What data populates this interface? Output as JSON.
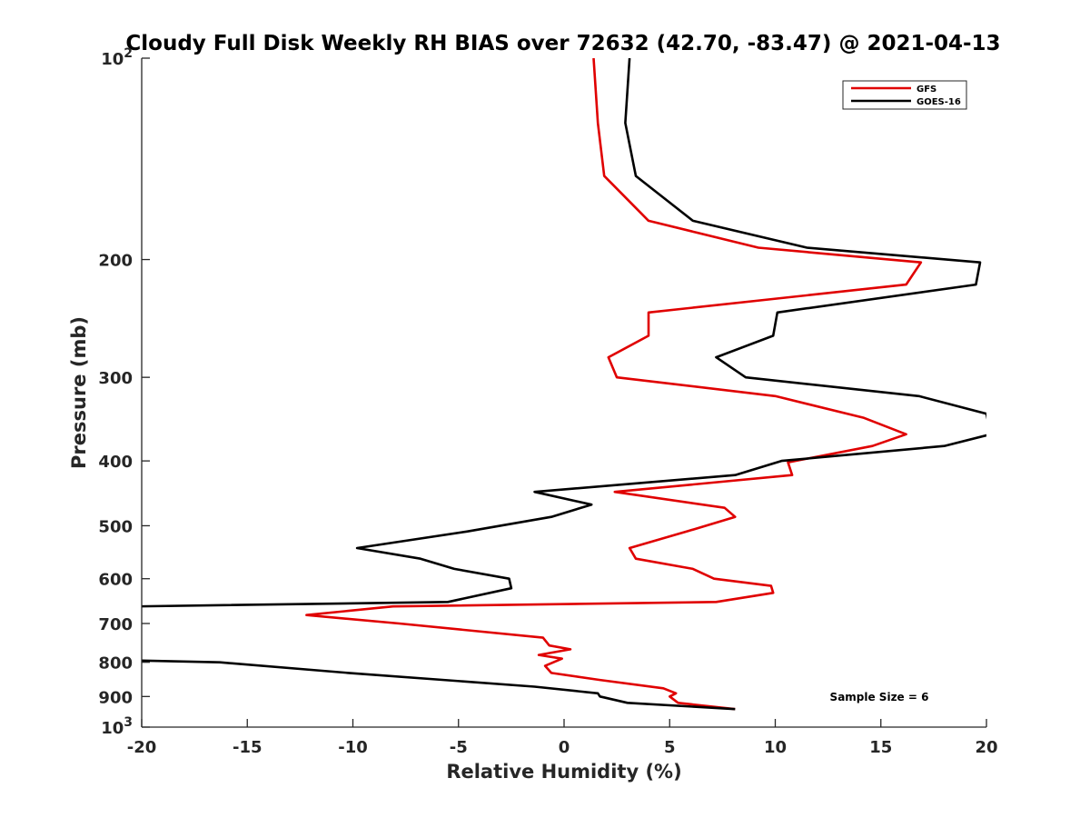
{
  "chart_data": {
    "type": "line",
    "title": "Cloudy Full Disk Weekly RH BIAS over 72632 (42.70, -83.47) @ 2021-04-13",
    "xlabel": "Relative Humidity (%)",
    "ylabel": "Pressure (mb)",
    "xlim": [
      -20,
      20
    ],
    "ylim": [
      100,
      1000
    ],
    "y_scale": "log",
    "y_direction": "reversed",
    "x_ticks": [
      -20,
      -15,
      -10,
      -5,
      0,
      5,
      10,
      15,
      20
    ],
    "x_tick_labels": [
      "-20",
      "-15",
      "-10",
      "-5",
      "0",
      "5",
      "10",
      "15",
      "20"
    ],
    "y_ticks": [
      {
        "value": 100,
        "base": "10",
        "exp": "2"
      },
      {
        "value": 200,
        "label": "200"
      },
      {
        "value": 300,
        "label": "300"
      },
      {
        "value": 400,
        "label": "400"
      },
      {
        "value": 500,
        "label": "500"
      },
      {
        "value": 600,
        "label": "600"
      },
      {
        "value": 700,
        "label": "700"
      },
      {
        "value": 800,
        "label": "800"
      },
      {
        "value": 900,
        "label": "900"
      },
      {
        "value": 1000,
        "base": "10",
        "exp": "3"
      }
    ],
    "grid": false,
    "legend_position": "top-right",
    "annotation": "Sample Size = 6",
    "series": [
      {
        "name": "GFS",
        "color": "#e00000",
        "points": [
          [
            1.4,
            100
          ],
          [
            1.6,
            125
          ],
          [
            1.9,
            150
          ],
          [
            4.0,
            175
          ],
          [
            9.2,
            192
          ],
          [
            16.9,
            202
          ],
          [
            16.2,
            218
          ],
          [
            4.0,
            240
          ],
          [
            4.0,
            260
          ],
          [
            2.1,
            280
          ],
          [
            2.5,
            300
          ],
          [
            10.0,
            320
          ],
          [
            14.2,
            345
          ],
          [
            16.2,
            365
          ],
          [
            14.6,
            380
          ],
          [
            10.6,
            402
          ],
          [
            10.8,
            420
          ],
          [
            2.4,
            445
          ],
          [
            7.6,
            470
          ],
          [
            8.1,
            485
          ],
          [
            5.8,
            510
          ],
          [
            3.1,
            540
          ],
          [
            3.4,
            560
          ],
          [
            6.1,
            580
          ],
          [
            7.1,
            600
          ],
          [
            9.8,
            615
          ],
          [
            9.9,
            630
          ],
          [
            7.2,
            650
          ],
          [
            -8.1,
            660
          ],
          [
            -12.2,
            680
          ],
          [
            -7.8,
            700
          ],
          [
            -1.0,
            735
          ],
          [
            -0.7,
            755
          ],
          [
            0.3,
            765
          ],
          [
            -1.2,
            780
          ],
          [
            -0.1,
            790
          ],
          [
            -0.9,
            810
          ],
          [
            -0.6,
            830
          ],
          [
            1.7,
            850
          ],
          [
            4.7,
            875
          ],
          [
            5.3,
            890
          ],
          [
            5.0,
            900
          ],
          [
            5.4,
            920
          ],
          [
            8.1,
            940
          ]
        ]
      },
      {
        "name": "GOES-16",
        "color": "#000000",
        "points": [
          [
            3.1,
            100
          ],
          [
            2.9,
            125
          ],
          [
            3.4,
            150
          ],
          [
            6.1,
            175
          ],
          [
            11.5,
            192
          ],
          [
            19.7,
            202
          ],
          [
            19.5,
            218
          ],
          [
            10.1,
            240
          ],
          [
            9.9,
            260
          ],
          [
            7.2,
            280
          ],
          [
            8.6,
            300
          ],
          [
            16.8,
            320
          ],
          [
            20.0,
            340
          ],
          [
            20.2,
            365
          ],
          [
            18.0,
            380
          ],
          [
            10.3,
            400
          ],
          [
            8.1,
            420
          ],
          [
            -1.4,
            445
          ],
          [
            1.3,
            465
          ],
          [
            -0.6,
            485
          ],
          [
            -4.6,
            510
          ],
          [
            -9.8,
            540
          ],
          [
            -6.8,
            560
          ],
          [
            -5.2,
            580
          ],
          [
            -2.6,
            600
          ],
          [
            -2.5,
            620
          ],
          [
            -5.5,
            650
          ],
          [
            -20.2,
            660
          ],
          [
            -20.2,
            795
          ],
          [
            -16.3,
            800
          ],
          [
            -10.2,
            830
          ],
          [
            -1.4,
            870
          ],
          [
            1.6,
            890
          ],
          [
            1.7,
            900
          ],
          [
            3.0,
            920
          ],
          [
            8.1,
            940
          ]
        ]
      }
    ]
  }
}
